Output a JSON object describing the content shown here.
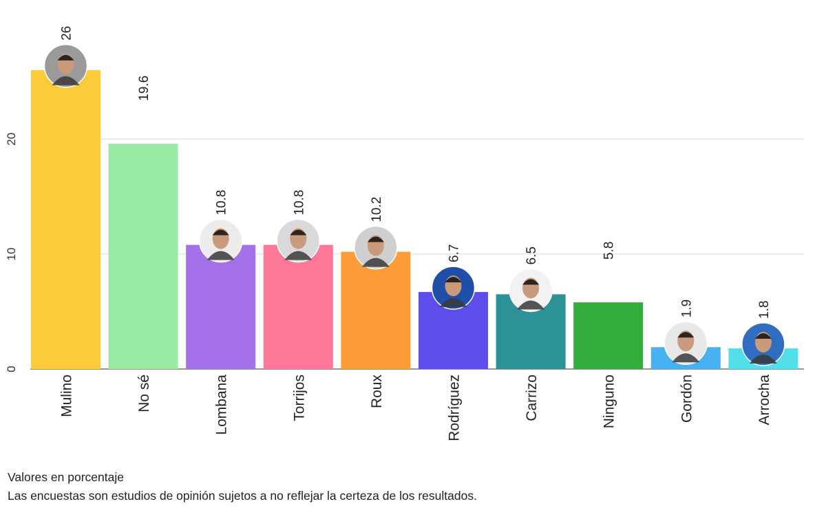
{
  "chart_data": {
    "type": "bar",
    "categories": [
      "Mulino",
      "No sé",
      "Lombana",
      "Torrijos",
      "Roux",
      "Rodríguez",
      "Carrizo",
      "Ninguno",
      "Gordón",
      "Arrocha"
    ],
    "values": [
      26,
      19.6,
      10.8,
      10.8,
      10.2,
      6.7,
      6.5,
      5.8,
      1.9,
      1.8
    ],
    "value_labels": [
      "26",
      "19.6",
      "10.8",
      "10.8",
      "10.2",
      "6.7",
      "6.5",
      "5.8",
      "1.9",
      "1.8"
    ],
    "colors": [
      "#fccb3b",
      "#99eaa2",
      "#a571e8",
      "#fd7796",
      "#fd9d39",
      "#5e4deb",
      "#2c9298",
      "#32ad3d",
      "#48b1f1",
      "#52dfe9"
    ],
    "has_photo": [
      true,
      false,
      true,
      true,
      true,
      true,
      true,
      false,
      true,
      true
    ],
    "photo_bg": [
      "#9a9a9a",
      "",
      "#ececec",
      "#d9d9d9",
      "#cfcfcf",
      "#1f4fa8",
      "#f2f2f2",
      "",
      "#e8e8e8",
      "#2e6dbf"
    ],
    "yticks": [
      0,
      10,
      20
    ],
    "ytick_labels": [
      "0",
      "10",
      "20"
    ],
    "ylim": [
      0,
      27
    ],
    "title": "",
    "xlabel": "",
    "ylabel": "",
    "grid": true
  },
  "notes": {
    "line1": "Valores en porcentaje",
    "line2": "Las encuestas son estudios de opinión sujetos a no reflejar la certeza de los resultados."
  }
}
